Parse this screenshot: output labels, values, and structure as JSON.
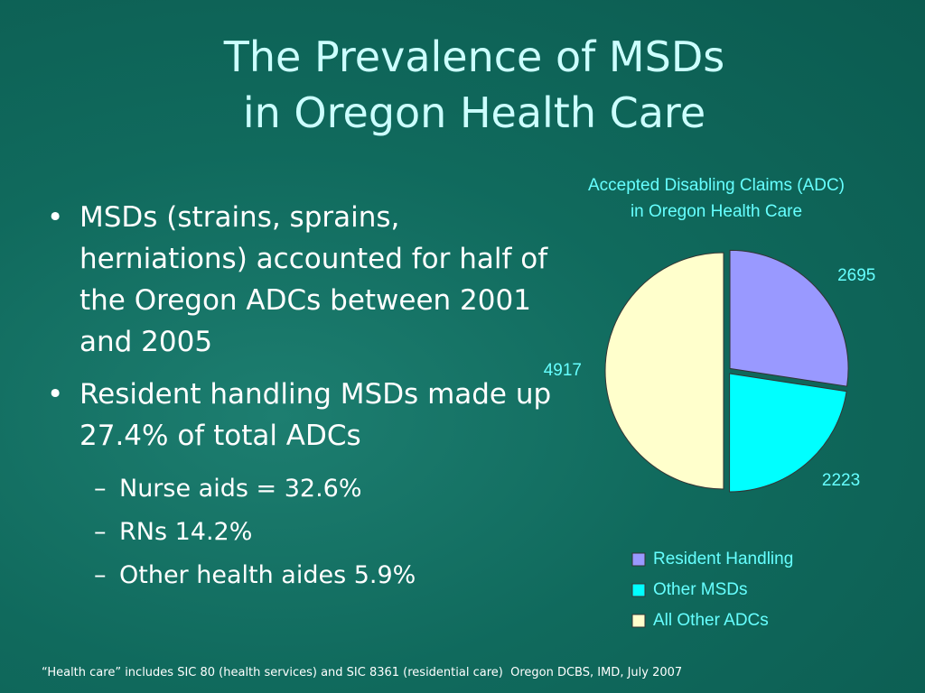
{
  "title": [
    "The Prevalence of MSDs",
    "in Oregon Health Care"
  ],
  "bullets": [
    {
      "text": "MSDs (strains, sprains, herniations) accounted for half of the Oregon ADCs between 2001 and 2005",
      "sub": []
    },
    {
      "text": "Resident handling MSDs made up 27.4% of total ADCs",
      "sub": [
        "Nurse aids = 32.6%",
        "RNs 14.2%",
        "Other health aides 5.9%"
      ]
    }
  ],
  "footnote": "“Health care” includes SIC 80 (health services) and SIC 8361 (residential care)  Oregon DCBS, IMD, July 2007",
  "chart_data": {
    "type": "pie",
    "title": [
      "Accepted Disabling Claims (ADC)",
      "in Oregon Health Care"
    ],
    "categories": [
      "Resident Handling",
      "Other MSDs",
      "All Other ADCs"
    ],
    "values": [
      2695,
      2223,
      4917
    ],
    "colors": [
      "#9999ff",
      "#00ffff",
      "#ffffcc"
    ],
    "legend": "bottom"
  }
}
